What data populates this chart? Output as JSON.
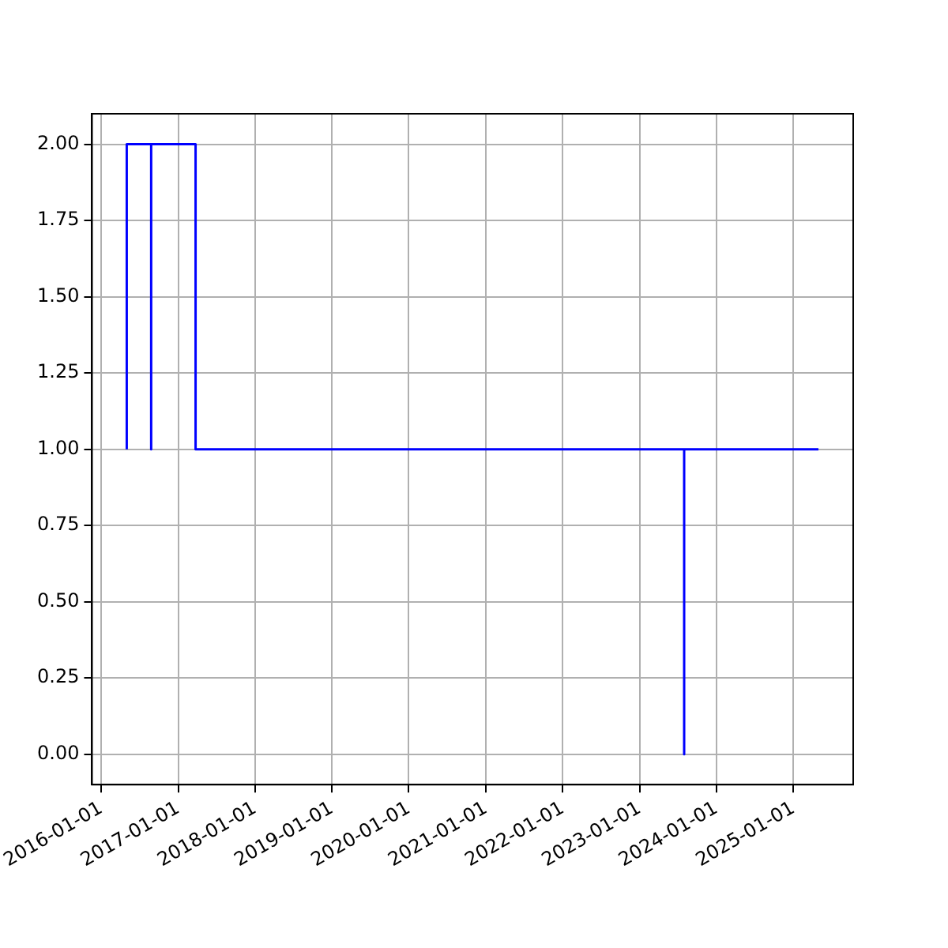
{
  "chart_data": {
    "type": "line",
    "x": [
      "2016-05-01",
      "2016-05-01",
      "2016-08-25",
      "2016-08-25",
      "2016-08-25",
      "2017-03-24",
      "2017-03-24",
      "2023-08-01",
      "2023-08-01",
      "2023-08-01",
      "2025-04-30"
    ],
    "series": [
      {
        "color": "#0000ff",
        "values": [
          1,
          2,
          2,
          1,
          2,
          2,
          1,
          1,
          0,
          1,
          1
        ]
      }
    ],
    "xlim": [
      "2015-11-18",
      "2025-10-12"
    ],
    "xticks": [
      "2016-01-01",
      "2017-01-01",
      "2018-01-01",
      "2019-01-01",
      "2020-01-01",
      "2021-01-01",
      "2022-01-01",
      "2023-01-01",
      "2024-01-01",
      "2025-01-01"
    ],
    "ylim": [
      -0.1,
      2.1
    ],
    "yticks": [
      {
        "value": 0,
        "label": "0.00"
      },
      {
        "value": 0.25,
        "label": "0.25"
      },
      {
        "value": 0.5,
        "label": "0.50"
      },
      {
        "value": 0.75,
        "label": "0.75"
      },
      {
        "value": 1,
        "label": "1.00"
      },
      {
        "value": 1.25,
        "label": "1.25"
      },
      {
        "value": 1.5,
        "label": "1.50"
      },
      {
        "value": 1.75,
        "label": "1.75"
      },
      {
        "value": 2,
        "label": "2.00"
      }
    ],
    "grid": true,
    "legend": false,
    "marker": "none",
    "line_style": "solid"
  }
}
